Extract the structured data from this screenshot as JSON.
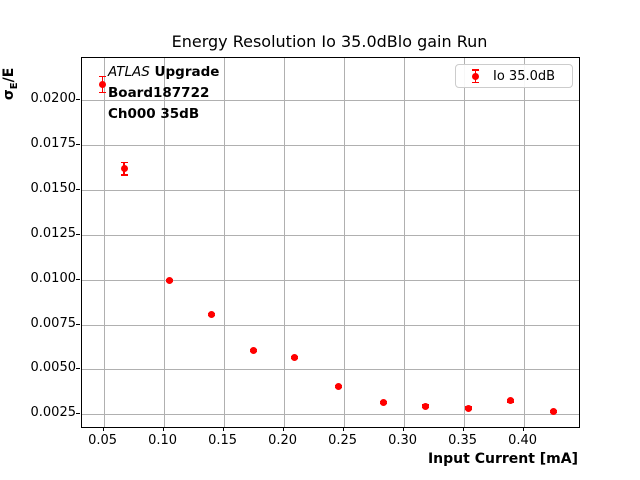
{
  "figure": {
    "title": "Energy Resolution Io 35.0dBlo gain Run",
    "x_axis_label": "Input Current [mA]",
    "y_axis_label": {
      "sigma": "σ",
      "sub": "E",
      "rest": "/E"
    },
    "annotation": {
      "line1_italic": "ATLAS",
      "line1_bold": "Upgrade",
      "line2": "Board187722",
      "line3": "Ch000 35dB"
    },
    "legend": {
      "label": "Io 35.0dB"
    }
  },
  "chart_data": {
    "type": "scatter",
    "title": "Energy Resolution Io 35.0dBlo gain Run",
    "xlabel": "Input Current [mA]",
    "ylabel": "σ_E/E",
    "grid": true,
    "legend_position": "upper right",
    "xlim": [
      0.032,
      0.4462
    ],
    "ylim": [
      0.0018,
      0.02232
    ],
    "x_ticks": [
      0.05,
      0.1,
      0.15,
      0.2,
      0.25,
      0.3,
      0.35,
      0.4
    ],
    "x_tick_labels": [
      "0.05",
      "0.10",
      "0.15",
      "0.20",
      "0.25",
      "0.30",
      "0.35",
      "0.40"
    ],
    "y_ticks": [
      0.0025,
      0.005,
      0.0075,
      0.01,
      0.0125,
      0.015,
      0.0175,
      0.02
    ],
    "y_tick_labels": [
      "0.0025",
      "0.0050",
      "0.0075",
      "0.0100",
      "0.0125",
      "0.0150",
      "0.0175",
      "0.0200"
    ],
    "series": [
      {
        "name": "Io 35.0dB",
        "color": "#ff0000",
        "marker": "o",
        "x": [
          0.05,
          0.068,
          0.106,
          0.141,
          0.176,
          0.21,
          0.247,
          0.284,
          0.319,
          0.355,
          0.39,
          0.426
        ],
        "y": [
          0.0208,
          0.0161,
          0.0099,
          0.008,
          0.006,
          0.0056,
          0.004,
          0.0031,
          0.0029,
          0.0028,
          0.0032,
          0.0026
        ],
        "yerr": [
          0.00045,
          0.00035,
          6e-05,
          6e-05,
          6e-05,
          6e-05,
          6e-05,
          6e-05,
          6e-05,
          6e-05,
          6e-05,
          6e-05
        ]
      }
    ],
    "colors": {
      "marker": "#ff0000",
      "grid": "#b0b0b0",
      "spine": "#000000",
      "legend_border": "#cccccc"
    }
  }
}
